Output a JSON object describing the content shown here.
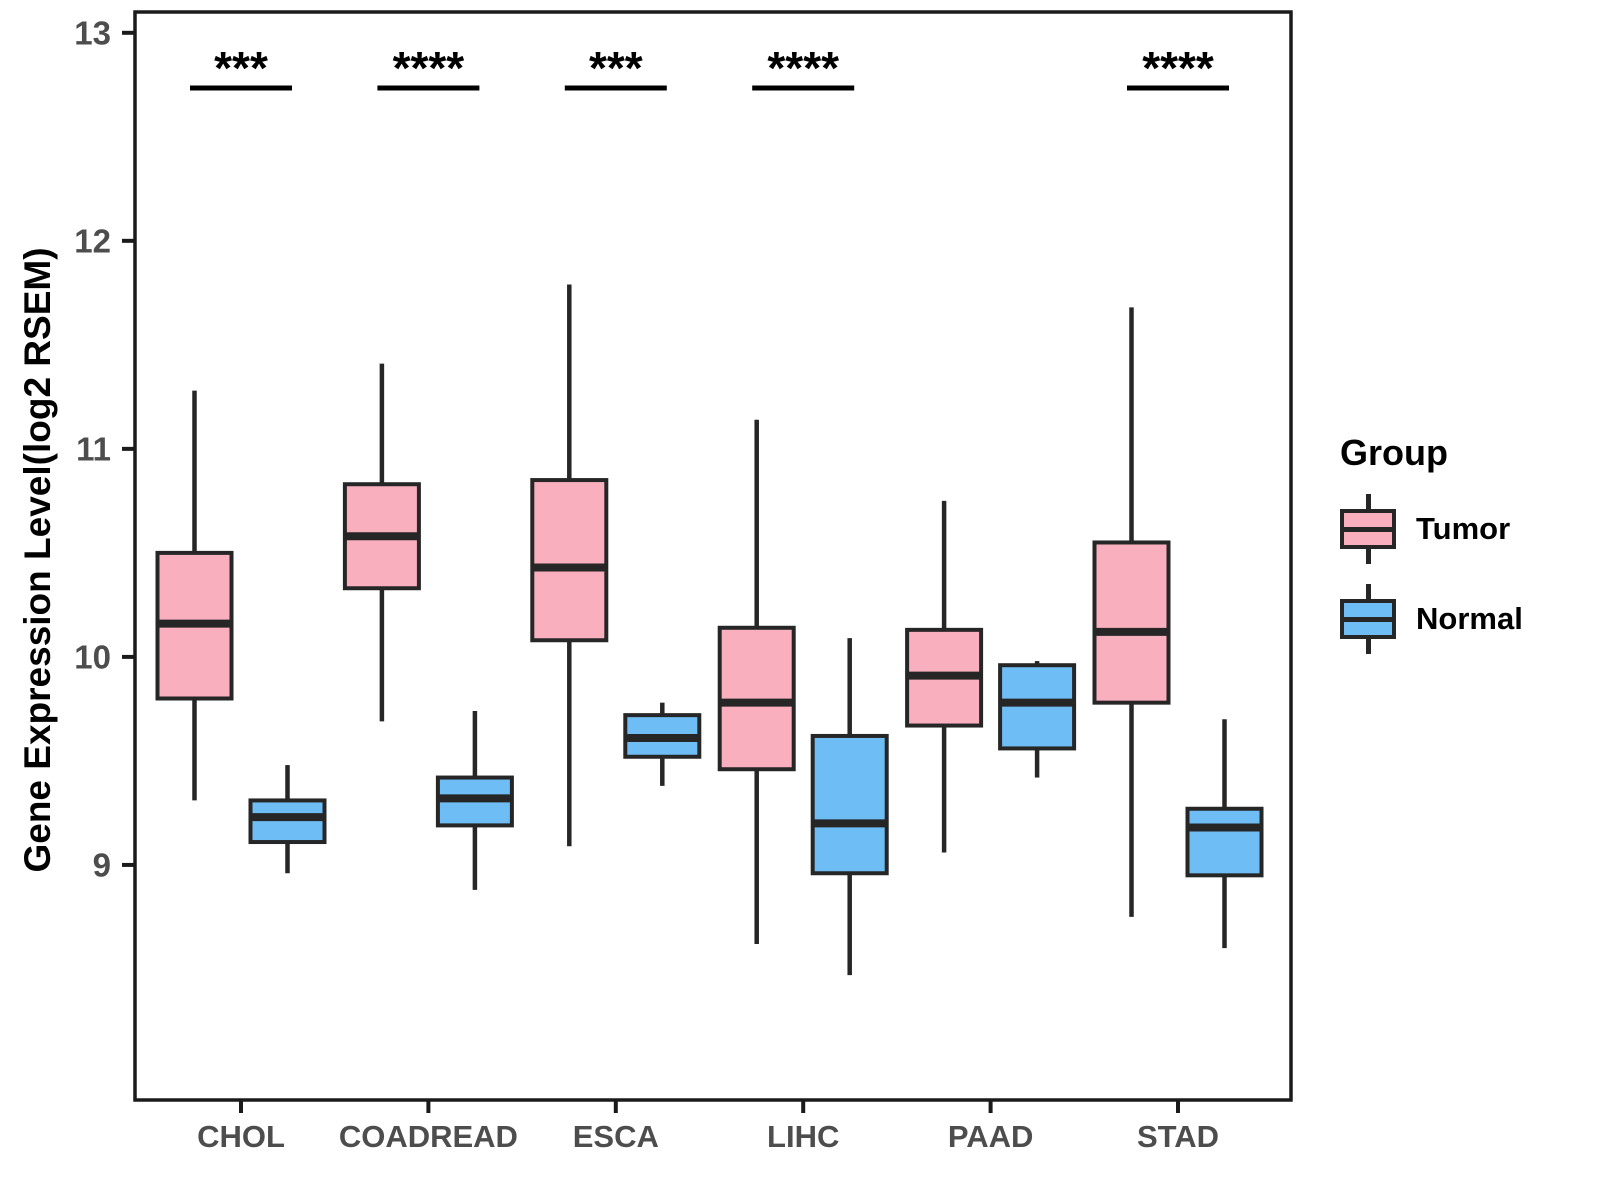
{
  "chart_data": {
    "type": "boxplot",
    "title": "",
    "xlabel": "",
    "ylabel": "Gene Expression Level(log2 RSEM)",
    "categories": [
      "CHOL",
      "COADREAD",
      "ESCA",
      "LIHC",
      "PAAD",
      "STAD"
    ],
    "yticks": [
      9,
      10,
      11,
      12,
      13
    ],
    "ylim": [
      7.87,
      13.1
    ],
    "grid": false,
    "legend_position": "right",
    "series": [
      {
        "name": "Tumor",
        "color": "#FAAFBE",
        "stats": [
          {
            "min": 9.31,
            "q1": 9.8,
            "median": 10.16,
            "q3": 10.5,
            "max": 11.28
          },
          {
            "min": 9.69,
            "q1": 10.33,
            "median": 10.58,
            "q3": 10.83,
            "max": 11.41
          },
          {
            "min": 9.09,
            "q1": 10.08,
            "median": 10.43,
            "q3": 10.85,
            "max": 11.79
          },
          {
            "min": 8.62,
            "q1": 9.46,
            "median": 9.78,
            "q3": 10.14,
            "max": 11.14
          },
          {
            "min": 9.06,
            "q1": 9.67,
            "median": 9.91,
            "q3": 10.13,
            "max": 10.75
          },
          {
            "min": 8.75,
            "q1": 9.78,
            "median": 10.12,
            "q3": 10.55,
            "max": 11.68
          }
        ]
      },
      {
        "name": "Normal",
        "color": "#6EBEF5",
        "stats": [
          {
            "min": 8.96,
            "q1": 9.11,
            "median": 9.23,
            "q3": 9.31,
            "max": 9.48
          },
          {
            "min": 8.88,
            "q1": 9.19,
            "median": 9.32,
            "q3": 9.42,
            "max": 9.74
          },
          {
            "min": 9.38,
            "q1": 9.52,
            "median": 9.61,
            "q3": 9.72,
            "max": 9.78
          },
          {
            "min": 8.47,
            "q1": 8.96,
            "median": 9.2,
            "q3": 9.62,
            "max": 10.09
          },
          {
            "min": 9.42,
            "q1": 9.56,
            "median": 9.78,
            "q3": 9.96,
            "max": 9.98
          },
          {
            "min": 8.6,
            "q1": 8.95,
            "median": 9.18,
            "q3": 9.27,
            "max": 9.7
          }
        ]
      }
    ],
    "significance": [
      {
        "category": "CHOL",
        "label": "***"
      },
      {
        "category": "COADREAD",
        "label": "****"
      },
      {
        "category": "ESCA",
        "label": "***"
      },
      {
        "category": "LIHC",
        "label": "****"
      },
      {
        "category": "STAD",
        "label": "****"
      }
    ]
  },
  "legend": {
    "title": "Group",
    "items": [
      {
        "label": "Tumor",
        "color": "#FAAFBE"
      },
      {
        "label": "Normal",
        "color": "#6EBEF5"
      }
    ]
  },
  "colors": {
    "box_border": "#262626",
    "axis_line": "#1a1a1a",
    "axis_tick_text": "#4d4d4d",
    "axis_title_text": "#000000",
    "significance_text": "#000000"
  }
}
